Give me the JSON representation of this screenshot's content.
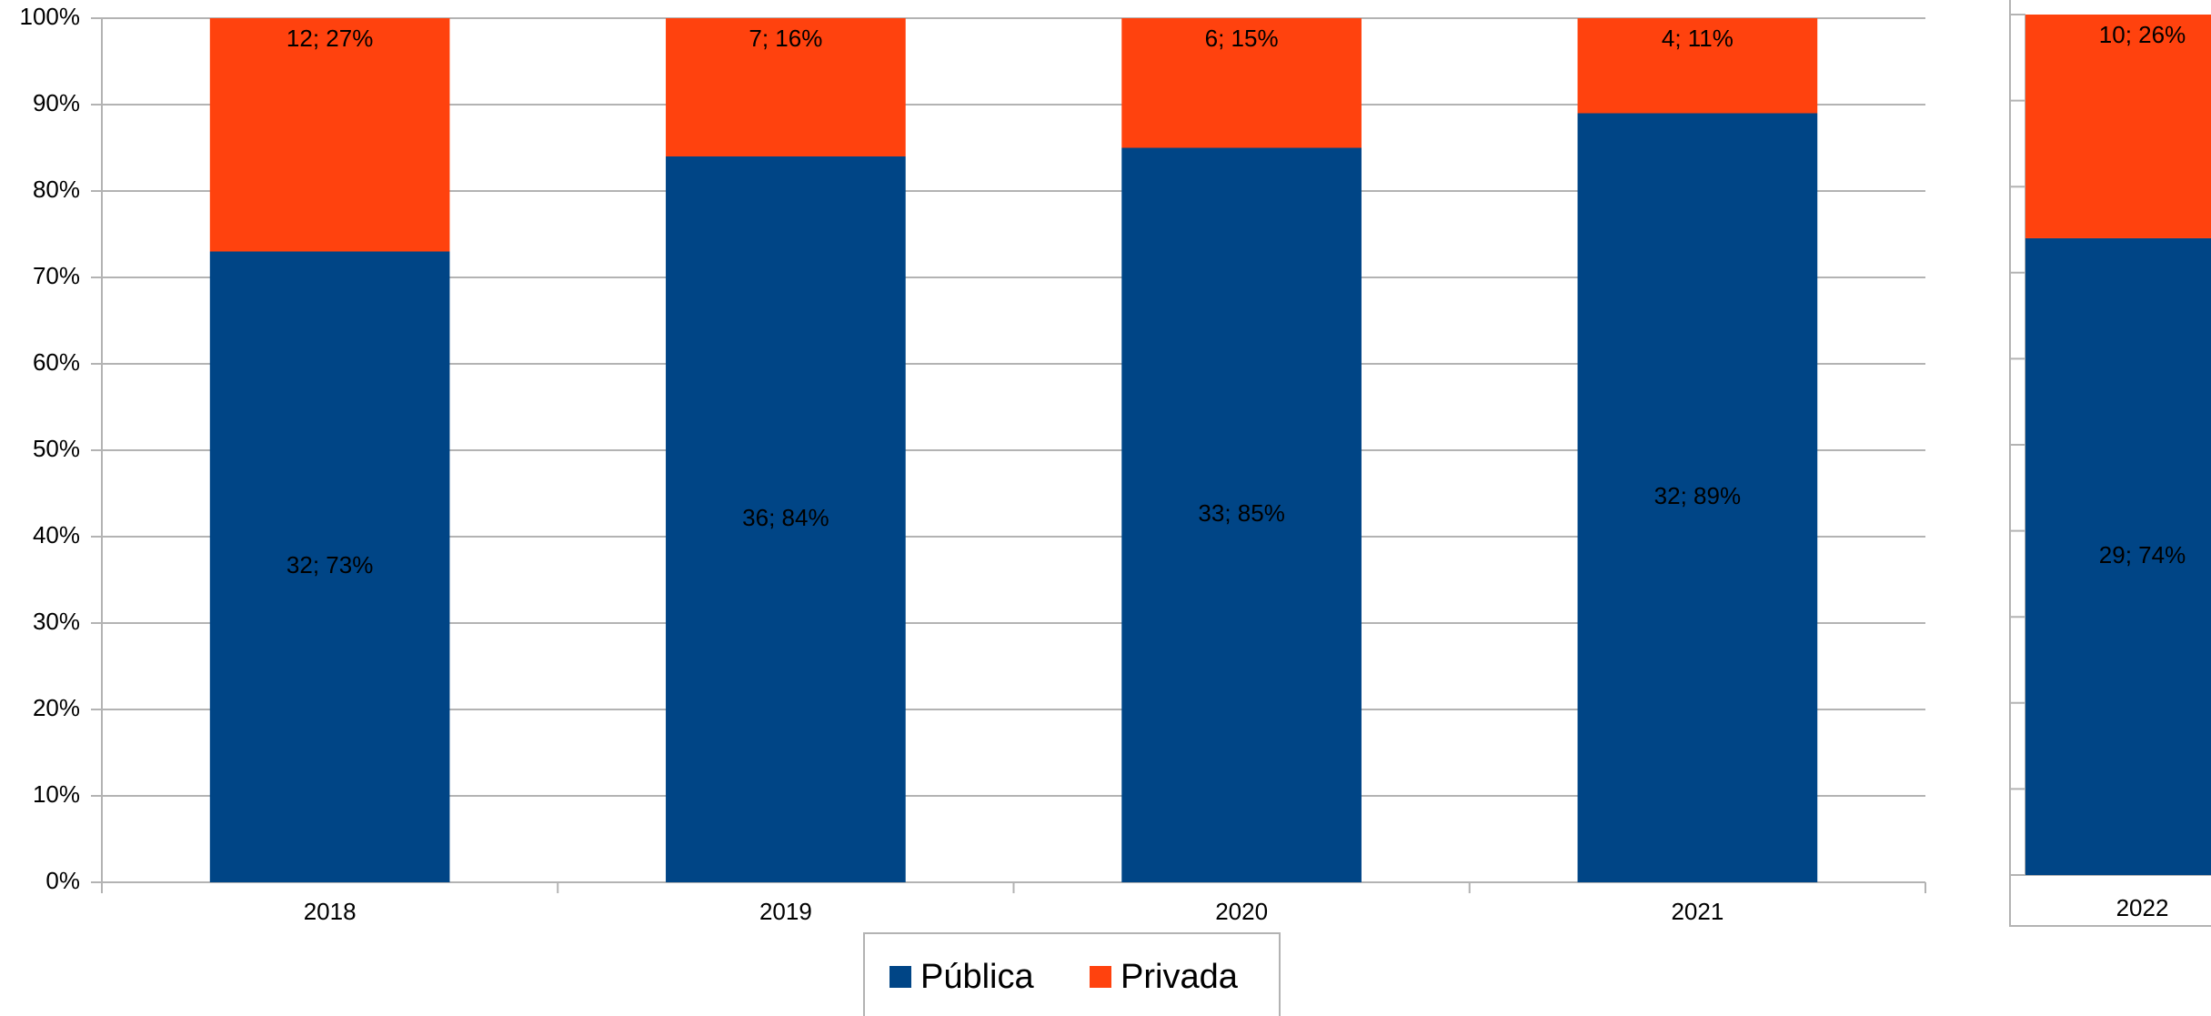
{
  "chart_data": [
    {
      "type": "bar",
      "stacked": true,
      "categories": [
        "2018",
        "2019",
        "2020",
        "2021"
      ],
      "series": [
        {
          "name": "Pública",
          "color": "#004586",
          "values": [
            73,
            84,
            85,
            89
          ],
          "value_labels": [
            "32; 73%",
            "36; 84%",
            "33; 85%",
            "32; 89%"
          ]
        },
        {
          "name": "Privada",
          "color": "#ff420e",
          "values": [
            27,
            16,
            15,
            11
          ],
          "value_labels": [
            "12; 27%",
            "7; 16%",
            "6; 15%",
            "4; 11%"
          ]
        }
      ],
      "ylim": [
        0,
        100
      ],
      "yticks": [
        {
          "value": 0,
          "label": "0%"
        },
        {
          "value": 10,
          "label": "10%"
        },
        {
          "value": 20,
          "label": "20%"
        },
        {
          "value": 30,
          "label": "30%"
        },
        {
          "value": 40,
          "label": "40%"
        },
        {
          "value": 50,
          "label": "50%"
        },
        {
          "value": 60,
          "label": "60%"
        },
        {
          "value": 70,
          "label": "70%"
        },
        {
          "value": 80,
          "label": "80%"
        },
        {
          "value": 90,
          "label": "90%"
        },
        {
          "value": 100,
          "label": "100%"
        }
      ],
      "grid": true,
      "legend": "bottom"
    },
    {
      "type": "bar",
      "stacked": true,
      "categories": [
        "2022"
      ],
      "series": [
        {
          "color": "#004586",
          "values": [
            74
          ],
          "value_labels": [
            "29; 74%"
          ]
        },
        {
          "color": "#ff420e",
          "values": [
            26
          ],
          "value_labels": [
            "10; 26%"
          ]
        }
      ],
      "ylim": [
        0,
        100
      ]
    }
  ]
}
